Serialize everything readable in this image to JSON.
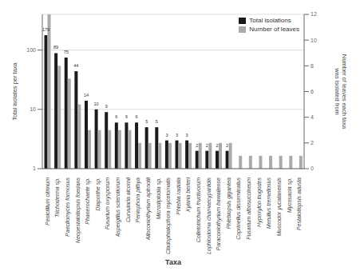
{
  "chart_data": {
    "type": "bar",
    "categories": [
      "Penicillium citrinum",
      "Trichoderma sp.",
      "Paecilomyces formosus",
      "Neopestalotiopsis foedans",
      "Phanerochaete sp.",
      "Diaporthe sp.",
      "Fusarium oxysporum",
      "Aspergillus sclerotiorum",
      "Curvularia alcornii",
      "Peniophora pithya",
      "Alloconiothyrium aptrootii",
      "Microdiplodia sp.",
      "Cladophialophora mycetomatis",
      "Phlebia radiata",
      "Xylaria berteri",
      "Colletotrichum fructivorum",
      "Lophiostoma chamaecypariidis",
      "Paraconiothyrium hawaiiense",
      "Phlebiopsis gigantea",
      "Coprinellus disseminatus",
      "Fusarium albosuccineum",
      "Hypoxylon trugodes",
      "Merulius tremellosus",
      "Muscodor yucatanensis",
      "Mycosacia sp.",
      "Pestalotiopsis adusta"
    ],
    "series": [
      {
        "name": "Total isolations",
        "color": "#1a1a1a",
        "data_labels": true,
        "values": [
          179,
          89,
          75,
          44,
          14,
          10,
          9,
          6,
          6,
          6,
          5,
          5,
          3,
          3,
          3,
          2,
          2,
          2,
          2,
          1,
          1,
          1,
          1,
          1,
          1,
          1
        ]
      },
      {
        "name": "Number of leaves",
        "color": "#aaaaaa",
        "axis": "y2",
        "values": [
          12,
          8,
          7,
          5,
          3,
          3,
          3,
          3,
          3,
          2,
          2,
          2,
          2,
          2,
          2,
          2,
          2,
          2,
          2,
          1,
          1,
          1,
          1,
          1,
          1,
          1
        ]
      }
    ],
    "xlabel": "Taxa",
    "ylabel": "Total isolates per taxa",
    "y2label": "Number of leaves each taxa\nwas isolated from",
    "log": "y",
    "ylim": [
      1,
      400
    ],
    "yticks": [
      1,
      10,
      100
    ],
    "y2lim": [
      0,
      12
    ],
    "y2ticks": [
      0,
      2,
      4,
      6,
      8,
      10,
      12
    ],
    "grid": true,
    "legend": "upper right"
  }
}
